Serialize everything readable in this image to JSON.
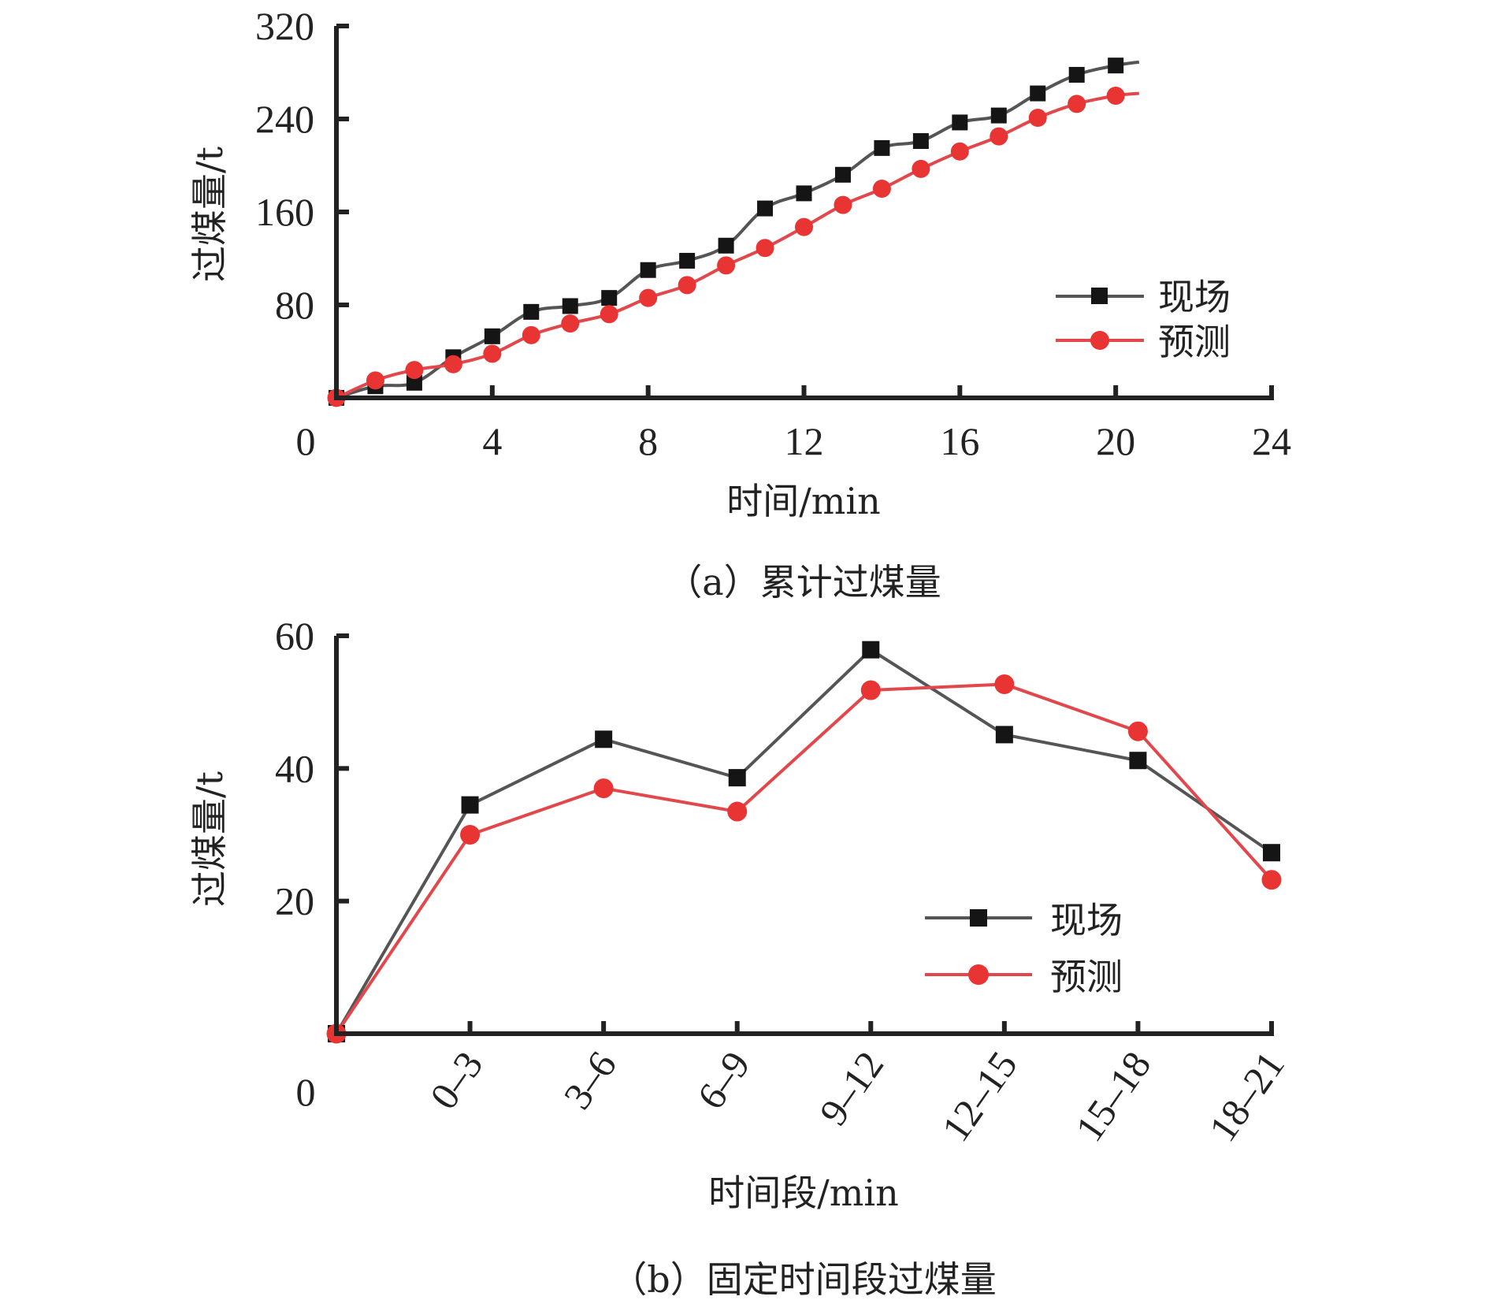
{
  "colors": {
    "field_line": "#555555",
    "field_marker": "#151515",
    "predict_line": "#e2474c",
    "predict_marker": "#e93434",
    "axis": "#222222"
  },
  "chart_data": [
    {
      "id": "a",
      "type": "line",
      "caption": "（a）累计过煤量",
      "xlabel": "时间/min",
      "ylabel": "过煤量/t",
      "xlim": [
        0,
        24
      ],
      "ylim": [
        0,
        320
      ],
      "xticks": [
        "0",
        "4",
        "8",
        "12",
        "16",
        "20",
        "24"
      ],
      "xtick_values": [
        0,
        4,
        8,
        12,
        16,
        20,
        24
      ],
      "yticks": [
        "80",
        "160",
        "240",
        "320"
      ],
      "ytick_values": [
        80,
        160,
        240,
        320
      ],
      "grid": false,
      "legend_position": "right",
      "x": [
        0,
        1,
        2,
        3,
        4,
        5,
        6,
        7,
        8,
        9,
        10,
        11,
        12,
        13,
        14,
        15,
        16,
        17,
        18,
        19,
        20
      ],
      "series": [
        {
          "name": "现场",
          "marker": "square",
          "values": [
            0,
            10,
            13,
            35,
            53,
            74,
            79,
            86,
            110,
            118,
            131,
            163,
            176,
            192,
            215,
            221,
            237,
            243,
            262,
            278,
            286
          ],
          "tail": [
            20.6,
            289
          ]
        },
        {
          "name": "预测",
          "marker": "circle",
          "values": [
            0,
            15,
            24,
            29,
            38,
            54,
            64,
            72,
            86,
            97,
            114,
            129,
            147,
            166,
            180,
            197,
            212,
            225,
            241,
            253,
            260
          ],
          "tail": [
            20.6,
            262
          ]
        }
      ]
    },
    {
      "id": "b",
      "type": "line",
      "caption": "（b）固定时间段过煤量",
      "xlabel": "时间段/min",
      "ylabel": "过煤量/t",
      "ylim": [
        0,
        60
      ],
      "yticks": [
        "20",
        "40",
        "60"
      ],
      "ytick_values": [
        20,
        40,
        60
      ],
      "origin_label": "0",
      "categories": [
        "",
        "0–3",
        "3–6",
        "6–9",
        "9–12",
        "12–15",
        "15–18",
        "18–21"
      ],
      "grid": false,
      "legend_position": "lower-right",
      "series": [
        {
          "name": "现场",
          "marker": "square",
          "values": [
            0,
            34.5,
            44.4,
            38.6,
            57.9,
            45.1,
            41.2,
            27.3
          ]
        },
        {
          "name": "预测",
          "marker": "circle",
          "values": [
            0,
            30.0,
            37.0,
            33.5,
            51.8,
            52.7,
            45.6,
            23.2
          ]
        }
      ]
    }
  ]
}
